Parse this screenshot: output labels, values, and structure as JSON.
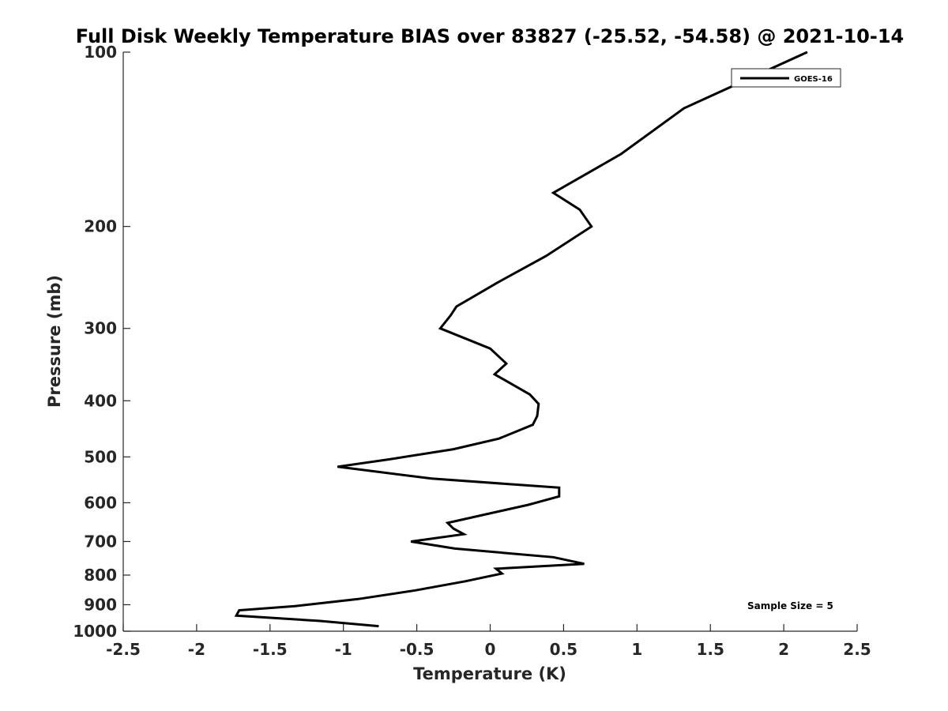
{
  "chart_data": {
    "type": "line",
    "title": "Full Disk Weekly Temperature BIAS over 83827 (-25.52, -54.58) @ 2021-10-14",
    "xlabel": "Temperature (K)",
    "ylabel": "Pressure (mb)",
    "xlim": [
      -2.5,
      2.5
    ],
    "ylim": [
      100,
      1000
    ],
    "y_scale": "log",
    "y_reversed": true,
    "grid": false,
    "legend_position": "top-right",
    "x_ticks": [
      -2.5,
      -2,
      -1.5,
      -1,
      -0.5,
      0,
      0.5,
      1,
      1.5,
      2,
      2.5
    ],
    "x_tick_labels": [
      "-2.5",
      "-2",
      "-1.5",
      "-1",
      "-0.5",
      "0",
      "0.5",
      "1",
      "1.5",
      "2",
      "2.5"
    ],
    "y_ticks": [
      100,
      200,
      300,
      400,
      500,
      600,
      700,
      800,
      900,
      1000
    ],
    "y_tick_labels": [
      "100",
      "200",
      "300",
      "400",
      "500",
      "600",
      "700",
      "800",
      "900",
      "1000"
    ],
    "series": [
      {
        "name": "GOES-16",
        "color": "#000000",
        "points": [
          {
            "x": 2.16,
            "p": 100
          },
          {
            "x": 1.32,
            "p": 125
          },
          {
            "x": 0.89,
            "p": 150
          },
          {
            "x": 0.43,
            "p": 175
          },
          {
            "x": 0.61,
            "p": 187
          },
          {
            "x": 0.69,
            "p": 200
          },
          {
            "x": 0.38,
            "p": 225
          },
          {
            "x": 0.05,
            "p": 250
          },
          {
            "x": -0.23,
            "p": 275
          },
          {
            "x": -0.27,
            "p": 285
          },
          {
            "x": -0.34,
            "p": 300
          },
          {
            "x": 0.0,
            "p": 325
          },
          {
            "x": 0.11,
            "p": 345
          },
          {
            "x": 0.03,
            "p": 360
          },
          {
            "x": 0.27,
            "p": 390
          },
          {
            "x": 0.33,
            "p": 405
          },
          {
            "x": 0.32,
            "p": 425
          },
          {
            "x": 0.29,
            "p": 440
          },
          {
            "x": 0.06,
            "p": 465
          },
          {
            "x": -0.25,
            "p": 485
          },
          {
            "x": -0.69,
            "p": 505
          },
          {
            "x": -1.04,
            "p": 520
          },
          {
            "x": -0.4,
            "p": 545
          },
          {
            "x": 0.47,
            "p": 565
          },
          {
            "x": 0.47,
            "p": 585
          },
          {
            "x": 0.26,
            "p": 605
          },
          {
            "x": -0.29,
            "p": 650
          },
          {
            "x": -0.25,
            "p": 665
          },
          {
            "x": -0.18,
            "p": 680
          },
          {
            "x": -0.54,
            "p": 700
          },
          {
            "x": -0.24,
            "p": 720
          },
          {
            "x": 0.43,
            "p": 745
          },
          {
            "x": 0.64,
            "p": 765
          },
          {
            "x": 0.04,
            "p": 780
          },
          {
            "x": 0.08,
            "p": 795
          },
          {
            "x": -0.17,
            "p": 820
          },
          {
            "x": -0.51,
            "p": 850
          },
          {
            "x": -0.9,
            "p": 880
          },
          {
            "x": -1.33,
            "p": 905
          },
          {
            "x": -1.71,
            "p": 920
          },
          {
            "x": -1.73,
            "p": 940
          },
          {
            "x": -1.16,
            "p": 960
          },
          {
            "x": -0.76,
            "p": 980
          }
        ]
      }
    ],
    "annotations": [
      {
        "text": "Sample Size = 5",
        "position": "bottom-right"
      }
    ]
  }
}
